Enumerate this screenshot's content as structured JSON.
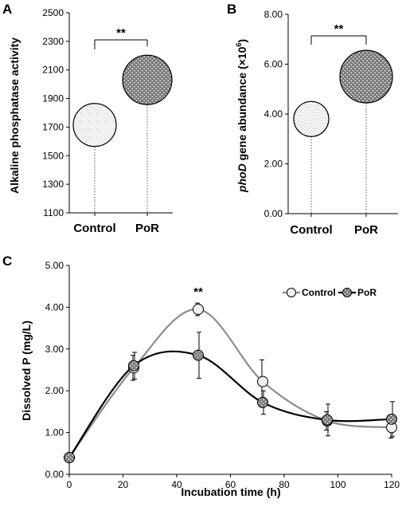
{
  "panels": {
    "a": "A",
    "b": "B",
    "c": "C"
  },
  "colors": {
    "control_fill": "#ffffff",
    "por_fill": "#7a7a7a",
    "control_line": "#8c8c8c",
    "por_line": "#000000"
  },
  "chart_data": [
    {
      "type": "scatter",
      "panel": "A",
      "categories": [
        "Control",
        "PoR"
      ],
      "values": [
        1715,
        2030
      ],
      "ylabel": "Alkaline phosphatase activity",
      "ylim": [
        1100,
        2500
      ],
      "yticks": [
        "1100",
        "1300",
        "1500",
        "1700",
        "1900",
        "2100",
        "2300",
        "2500"
      ],
      "significance": "**",
      "grid": false
    },
    {
      "type": "scatter",
      "panel": "B",
      "categories": [
        "Control",
        "PoR"
      ],
      "values": [
        3.8,
        5.5
      ],
      "ylabel_pre": "phoD",
      "ylabel_post": " gene abundance (×10",
      "ylabel_sup": "6",
      "ylabel_close": ")",
      "ylim": [
        0,
        8
      ],
      "yticks": [
        "0.00",
        "2.00",
        "4.00",
        "6.00",
        "8.00"
      ],
      "significance": "**",
      "grid": false
    },
    {
      "type": "line",
      "panel": "C",
      "x": [
        0,
        24,
        48,
        72,
        96,
        120
      ],
      "xticks": [
        "0",
        "20",
        "40",
        "60",
        "80",
        "100",
        "120"
      ],
      "yticks": [
        "0.00",
        "1.00",
        "2.00",
        "3.00",
        "4.00",
        "5.00"
      ],
      "xlabel": "Incubation time (h)",
      "ylabel": "Dissolved P (mg/L)",
      "xlim": [
        0,
        120
      ],
      "ylim": [
        0,
        5
      ],
      "series": [
        {
          "name": "Control",
          "values": [
            0.4,
            2.55,
            3.95,
            2.22,
            1.28,
            1.12
          ],
          "errors": [
            0.0,
            0.3,
            0.15,
            0.52,
            0.22,
            0.25
          ]
        },
        {
          "name": "PoR",
          "values": [
            0.4,
            2.6,
            2.85,
            1.72,
            1.3,
            1.32
          ],
          "errors": [
            0.0,
            0.32,
            0.55,
            0.28,
            0.38,
            0.42
          ]
        }
      ],
      "significance": [
        {
          "x": 48,
          "label": "**"
        }
      ],
      "legend": "top-right",
      "grid": false
    }
  ]
}
